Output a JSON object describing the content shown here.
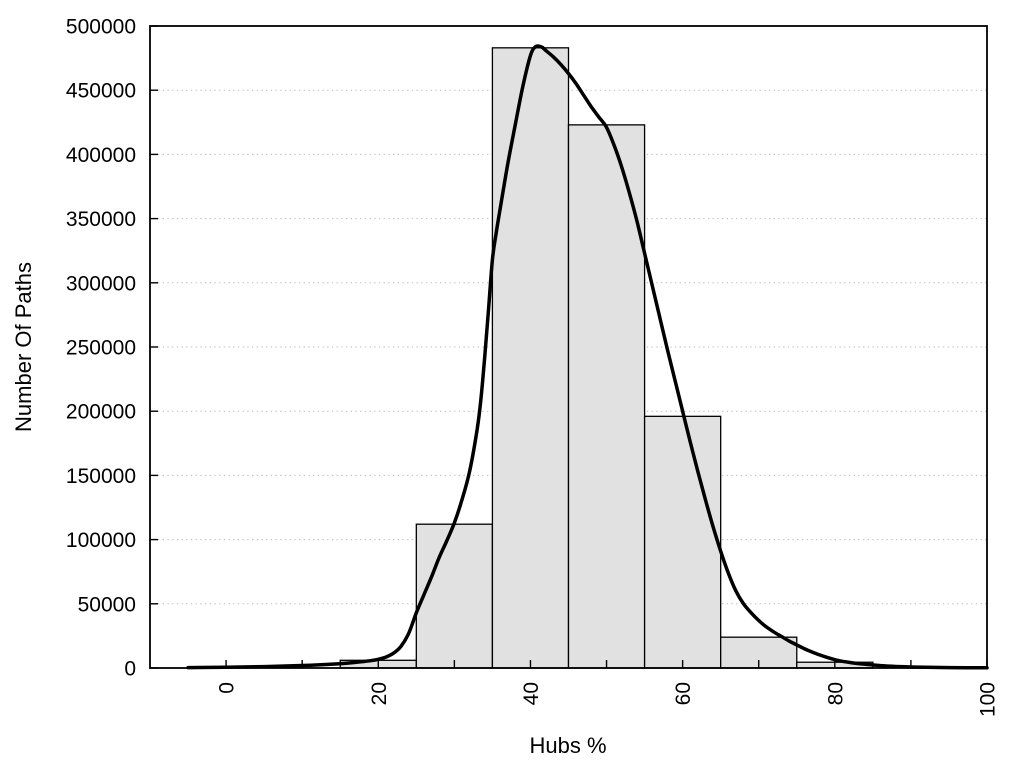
{
  "chart_data": {
    "type": "bar",
    "subtype": "histogram-with-density-curve",
    "title": "",
    "xlabel": "Hubs %",
    "ylabel": "Number Of Paths",
    "xlim": [
      -10,
      100
    ],
    "ylim": [
      0,
      500000
    ],
    "x_minor_tick_values": [
      0,
      10,
      20,
      30,
      40,
      50,
      60,
      70,
      80,
      90,
      100
    ],
    "x_label_values": [
      0,
      20,
      40,
      60,
      80,
      100
    ],
    "x_label_texts": [
      "0",
      "20",
      "40",
      "60",
      "80",
      "100"
    ],
    "x_labels_rotated_degrees": -90,
    "y_tick_values": [
      0,
      50000,
      100000,
      150000,
      200000,
      250000,
      300000,
      350000,
      400000,
      450000,
      500000
    ],
    "y_tick_labels": [
      "0",
      "50000",
      "100000",
      "150000",
      "200000",
      "250000",
      "300000",
      "350000",
      "400000",
      "450000",
      "500000"
    ],
    "grid": {
      "horizontal": true,
      "vertical": false,
      "style": "dotted",
      "color": "#b8b8b8"
    },
    "legend": null,
    "bars": {
      "fill": "#e1e1e1",
      "stroke": "#000000",
      "bin_edges": [
        15,
        25,
        35,
        45,
        55,
        65,
        75,
        85
      ],
      "counts": [
        6000,
        112000,
        483000,
        423000,
        196000,
        24000,
        4500
      ]
    },
    "curve": {
      "color": "#000000",
      "points": [
        [
          -5,
          300
        ],
        [
          0,
          600
        ],
        [
          5,
          1100
        ],
        [
          10,
          1900
        ],
        [
          14,
          3000
        ],
        [
          17,
          4400
        ],
        [
          19,
          5700
        ],
        [
          20,
          6800
        ],
        [
          21,
          8500
        ],
        [
          22,
          11500
        ],
        [
          23,
          17000
        ],
        [
          24,
          27000
        ],
        [
          25,
          43000
        ],
        [
          26,
          57000
        ],
        [
          27,
          71000
        ],
        [
          28,
          86000
        ],
        [
          29,
          99000
        ],
        [
          30,
          113000
        ],
        [
          31,
          131000
        ],
        [
          32,
          153000
        ],
        [
          33,
          186000
        ],
        [
          33.5,
          210000
        ],
        [
          34,
          243000
        ],
        [
          34.5,
          280000
        ],
        [
          35,
          318000
        ],
        [
          35.5,
          339000
        ],
        [
          36,
          357000
        ],
        [
          37,
          392000
        ],
        [
          38,
          423000
        ],
        [
          39,
          453000
        ],
        [
          40,
          477000
        ],
        [
          40.7,
          484000
        ],
        [
          41.5,
          483500
        ],
        [
          42,
          481000
        ],
        [
          43,
          476000
        ],
        [
          44,
          470000
        ],
        [
          45,
          463000
        ],
        [
          46,
          455000
        ],
        [
          47,
          446000
        ],
        [
          48,
          437000
        ],
        [
          49,
          429000
        ],
        [
          50,
          421000
        ],
        [
          51,
          407000
        ],
        [
          52,
          390000
        ],
        [
          53,
          370000
        ],
        [
          54,
          348000
        ],
        [
          55,
          323000
        ],
        [
          56,
          298000
        ],
        [
          57,
          273000
        ],
        [
          58,
          248000
        ],
        [
          59,
          224000
        ],
        [
          60,
          200000
        ],
        [
          61,
          176000
        ],
        [
          62,
          153000
        ],
        [
          63,
          131000
        ],
        [
          64,
          110000
        ],
        [
          65,
          91000
        ],
        [
          66,
          74000
        ],
        [
          67,
          60000
        ],
        [
          68,
          50000
        ],
        [
          69,
          43000
        ],
        [
          70,
          37000
        ],
        [
          71,
          32000
        ],
        [
          72,
          28000
        ],
        [
          73,
          24500
        ],
        [
          74,
          21000
        ],
        [
          75,
          18000
        ],
        [
          76,
          15000
        ],
        [
          77,
          12500
        ],
        [
          78,
          10200
        ],
        [
          79,
          8200
        ],
        [
          80,
          6500
        ],
        [
          81,
          5200
        ],
        [
          82,
          4300
        ],
        [
          83,
          3500
        ],
        [
          84,
          2900
        ],
        [
          85,
          2300
        ],
        [
          86,
          1900
        ],
        [
          87,
          1500
        ],
        [
          88,
          1200
        ],
        [
          90,
          800
        ],
        [
          92,
          550
        ],
        [
          95,
          320
        ],
        [
          100,
          150
        ]
      ]
    },
    "colors": {
      "frame": "#000000",
      "text": "#000000",
      "background": "#ffffff"
    }
  }
}
